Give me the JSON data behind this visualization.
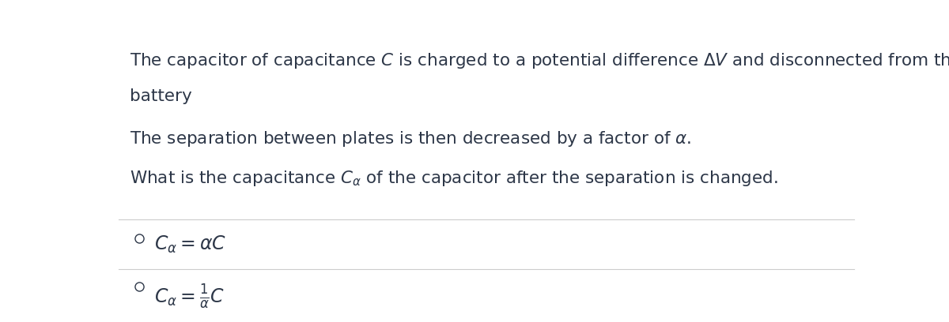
{
  "bg_color": "#ffffff",
  "text_color": "#2d3748",
  "line_color": "#cccccc",
  "paragraph1_line1": "The capacitor of capacitance $C$ is charged to a potential difference $\\Delta V$ and disconnected from the",
  "paragraph1_line2": "battery",
  "paragraph2": "The separation between plates is then decreased by a factor of $\\alpha$.",
  "paragraph3": "What is the capacitance $C_{\\alpha}$ of the capacitor after the separation is changed.",
  "option1": "$C_{\\alpha} = \\alpha C$",
  "option2": "$C_{\\alpha} = \\frac{1}{\\alpha}C$",
  "font_size_text": 15.5,
  "font_size_options": 17,
  "fig_width": 12.0,
  "fig_height": 4.08
}
